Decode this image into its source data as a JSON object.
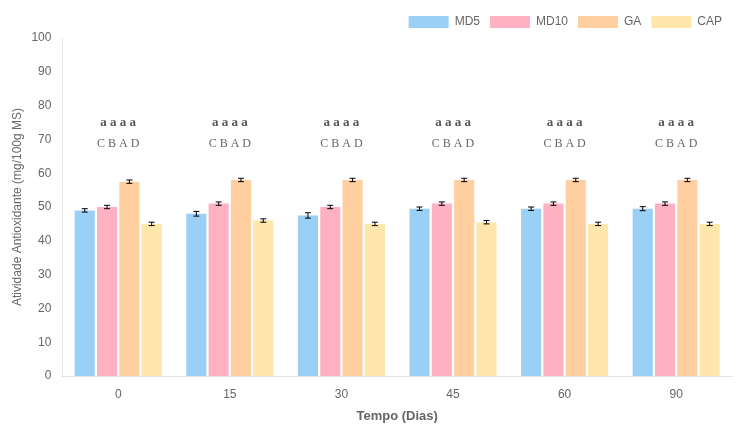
{
  "chart_data": {
    "type": "bar",
    "xlabel": "Tempo (Dias)",
    "ylabel": "Atividade Antioxidante (mg/100g MS)",
    "categories": [
      "0",
      "15",
      "30",
      "45",
      "60",
      "90"
    ],
    "series": [
      {
        "name": "MD5",
        "values": [
          49.0,
          48.0,
          47.5,
          49.5,
          49.5,
          49.5
        ],
        "errors": [
          0.5,
          0.7,
          0.8,
          0.5,
          0.5,
          0.6
        ]
      },
      {
        "name": "MD10",
        "values": [
          50.0,
          51.0,
          50.0,
          51.0,
          51.0,
          51.0
        ],
        "errors": [
          0.5,
          0.5,
          0.5,
          0.5,
          0.5,
          0.5
        ]
      },
      {
        "name": "GA",
        "values": [
          57.5,
          58.0,
          58.0,
          58.0,
          58.0,
          58.0
        ],
        "errors": [
          0.5,
          0.5,
          0.5,
          0.5,
          0.5,
          0.5
        ]
      },
      {
        "name": "CAP",
        "values": [
          45.0,
          46.0,
          45.0,
          45.5,
          45.0,
          45.0
        ],
        "errors": [
          0.5,
          0.5,
          0.5,
          0.5,
          0.5,
          0.5
        ]
      }
    ],
    "annotations": [
      {
        "text": "a a a a",
        "x": "0",
        "y": 73
      },
      {
        "text": "C B A D",
        "x": "0",
        "y": 67
      },
      {
        "text": "a a a a",
        "x": "15",
        "y": 73
      },
      {
        "text": "C B A D",
        "x": "15",
        "y": 67
      },
      {
        "text": "a a a a",
        "x": "30",
        "y": 73
      },
      {
        "text": "C B A D",
        "x": "30",
        "y": 67
      },
      {
        "text": "a a a a",
        "x": "45",
        "y": 73
      },
      {
        "text": "C B A D",
        "x": "45",
        "y": 67
      },
      {
        "text": "a a a a",
        "x": "60",
        "y": 73
      },
      {
        "text": "C B A D",
        "x": "60",
        "y": 67
      },
      {
        "text": "a a a a",
        "x": "90",
        "y": 73
      },
      {
        "text": "C B A D",
        "x": "90",
        "y": 67
      }
    ],
    "ylim": [
      0,
      100
    ],
    "yticks": [
      0,
      10,
      20,
      30,
      40,
      50,
      60,
      70,
      80,
      90,
      100
    ],
    "grid": false,
    "legend": "upper right"
  }
}
